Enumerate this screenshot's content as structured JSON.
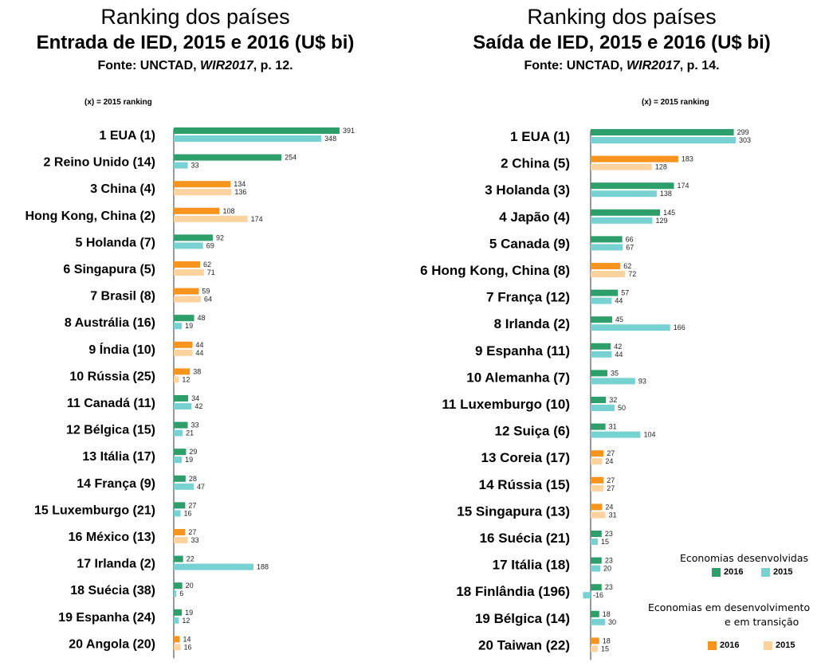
{
  "colors": {
    "developed_2016": "#2e9e6b",
    "developed_2015": "#78d2d2",
    "developing_2016": "#f7941d",
    "developing_2015": "#fcd29f",
    "axis": "#333333"
  },
  "legend": {
    "ranking_note": "(x) = 2015 ranking",
    "developed_title": "Economias desenvolvidas",
    "developing_title_line1": "Economias em desenvolvimento",
    "developing_title_line2": "e em transição",
    "label_2016": "2016",
    "label_2015": "2015"
  },
  "chart_data": [
    {
      "type": "bar",
      "title": "Ranking dos países",
      "subtitle": "Entrada de IED, 2015 e 2016 (U$ bi)",
      "source_prefix": "Fonte: UNCTAD, ",
      "source_italic": "WIR2017",
      "source_suffix": ", p. 12.",
      "orientation": "horizontal",
      "value_scale_max": 391,
      "categories": [
        "1 EUA (1)",
        "2 Reino Unido (14)",
        "3 China (4)",
        "Hong Kong, China (2)",
        "5 Holanda (7)",
        "6 Singapura (5)",
        "7  Brasil (8)",
        "8 Austrália (16)",
        "9 Índia (10)",
        "10 Rússia (25)",
        "11 Canadá (11)",
        "12 Bélgica (15)",
        "13 Itália (17)",
        "14 França (9)",
        "15 Luxemburgo (21)",
        "16 México (13)",
        "17 Irlanda (2)",
        "18 Suécia (38)",
        "19 Espanha (24)",
        "20 Angola (20)"
      ],
      "group": [
        "developed",
        "developed",
        "developing",
        "developing",
        "developed",
        "developing",
        "developing",
        "developed",
        "developing",
        "developing",
        "developed",
        "developed",
        "developed",
        "developed",
        "developed",
        "developing",
        "developed",
        "developed",
        "developed",
        "developing"
      ],
      "series": [
        {
          "name": "2016",
          "values": [
            391,
            254,
            134,
            108,
            92,
            62,
            59,
            48,
            44,
            38,
            34,
            33,
            29,
            28,
            27,
            27,
            22,
            20,
            19,
            14
          ]
        },
        {
          "name": "2015",
          "values": [
            348,
            33,
            136,
            174,
            69,
            71,
            64,
            19,
            44,
            12,
            42,
            21,
            19,
            47,
            16,
            33,
            188,
            6,
            12,
            16
          ]
        }
      ]
    },
    {
      "type": "bar",
      "title": "Ranking dos países",
      "subtitle": "Saída de IED, 2015 e 2016 (U$ bi)",
      "source_prefix": "Fonte: UNCTAD, ",
      "source_italic": "WIR2017",
      "source_suffix": ", p. 14.",
      "orientation": "horizontal",
      "value_scale_max": 303,
      "categories": [
        "1 EUA (1)",
        "2 China (5)",
        "3 Holanda (3)",
        "4 Japão (4)",
        "5 Canada (9)",
        "6 Hong Kong, China (8)",
        "7 França (12)",
        "8 Irlanda (2)",
        "9 Espanha (11)",
        "10 Alemanha (7)",
        "11 Luxemburgo (10)",
        "12 Suiça  (6)",
        "13 Coreia (17)",
        "14 Rússia (15)",
        "15 Singapura (13)",
        "16 Suécia (21)",
        "17 Itália (18)",
        "18 Finlândia (196)",
        "19 Bélgica (14)",
        "20 Taiwan (22)"
      ],
      "group": [
        "developed",
        "developing",
        "developed",
        "developed",
        "developed",
        "developing",
        "developed",
        "developed",
        "developed",
        "developed",
        "developed",
        "developed",
        "developing",
        "developing",
        "developing",
        "developed",
        "developed",
        "developed",
        "developed",
        "developing"
      ],
      "series": [
        {
          "name": "2016",
          "values": [
            299,
            183,
            174,
            145,
            66,
            62,
            57,
            45,
            42,
            35,
            32,
            31,
            27,
            27,
            24,
            23,
            23,
            23,
            18,
            18
          ]
        },
        {
          "name": "2015",
          "values": [
            303,
            128,
            138,
            129,
            67,
            72,
            44,
            166,
            44,
            93,
            50,
            104,
            24,
            27,
            31,
            15,
            20,
            -16,
            30,
            15
          ]
        }
      ]
    }
  ]
}
